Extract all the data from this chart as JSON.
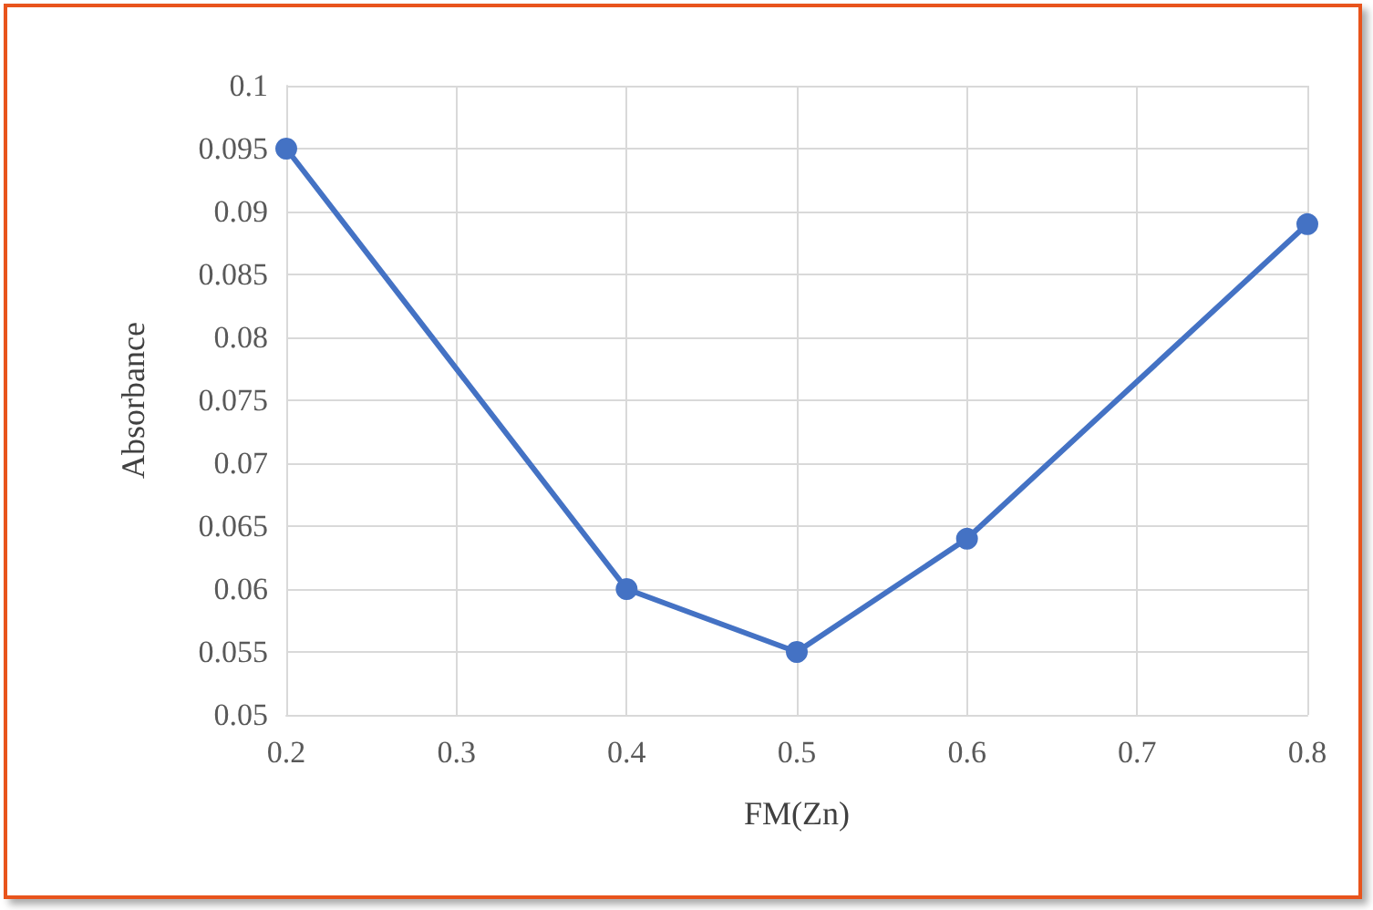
{
  "chart_data": {
    "type": "line",
    "xlabel": "FM(Zn)",
    "ylabel": "Absorbance",
    "x": [
      0.2,
      0.4,
      0.5,
      0.6,
      0.8
    ],
    "series": [
      {
        "color": "#4472c4",
        "values": [
          0.095,
          0.06,
          0.055,
          0.064,
          0.089
        ]
      }
    ],
    "xlim": [
      0.2,
      0.8
    ],
    "xticks": [
      0.2,
      0.3,
      0.4,
      0.5,
      0.6,
      0.7,
      0.8
    ],
    "ylim": [
      0.05,
      0.1
    ],
    "yticks": [
      0.05,
      0.055,
      0.06,
      0.065,
      0.07,
      0.075,
      0.08,
      0.085,
      0.09,
      0.095,
      0.1
    ],
    "grid": true,
    "marker": "circle",
    "line_style": "solid"
  }
}
